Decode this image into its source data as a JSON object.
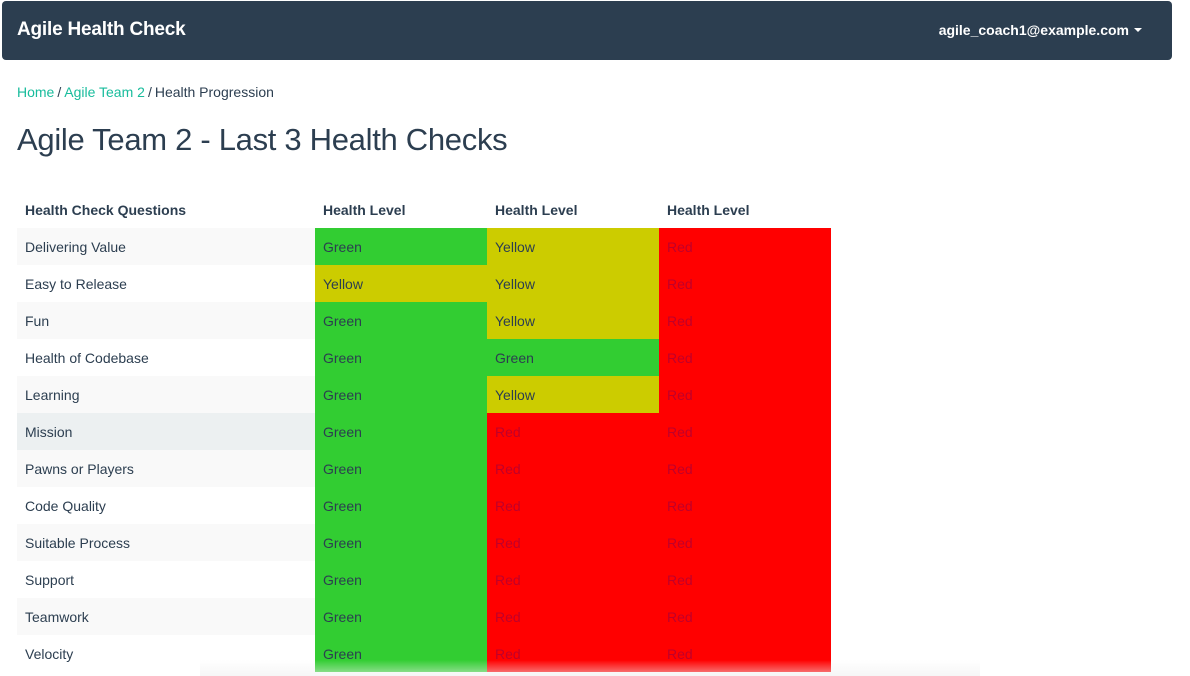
{
  "navbar": {
    "brand": "Agile Health Check",
    "user_email": "agile_coach1@example.com"
  },
  "breadcrumb": {
    "home": "Home",
    "separator": "/",
    "team": "Agile Team 2",
    "current": "Health Progression"
  },
  "page": {
    "title": "Agile Team 2 - Last 3 Health Checks"
  },
  "table": {
    "headers": [
      "Health Check Questions",
      "Health Level",
      "Health Level",
      "Health Level"
    ],
    "rows": [
      {
        "question": "Delivering Value",
        "levels": [
          "Green",
          "Yellow",
          "Red"
        ]
      },
      {
        "question": "Easy to Release",
        "levels": [
          "Yellow",
          "Yellow",
          "Red"
        ]
      },
      {
        "question": "Fun",
        "levels": [
          "Green",
          "Yellow",
          "Red"
        ]
      },
      {
        "question": "Health of Codebase",
        "levels": [
          "Green",
          "Green",
          "Red"
        ]
      },
      {
        "question": "Learning",
        "levels": [
          "Green",
          "Yellow",
          "Red"
        ]
      },
      {
        "question": "Mission",
        "levels": [
          "Green",
          "Red",
          "Red"
        ]
      },
      {
        "question": "Pawns or Players",
        "levels": [
          "Green",
          "Red",
          "Red"
        ]
      },
      {
        "question": "Code Quality",
        "levels": [
          "Green",
          "Red",
          "Red"
        ]
      },
      {
        "question": "Suitable Process",
        "levels": [
          "Green",
          "Red",
          "Red"
        ]
      },
      {
        "question": "Support",
        "levels": [
          "Green",
          "Red",
          "Red"
        ]
      },
      {
        "question": "Teamwork",
        "levels": [
          "Green",
          "Red",
          "Red"
        ]
      },
      {
        "question": "Velocity",
        "levels": [
          "Green",
          "Red",
          "Red"
        ]
      }
    ]
  },
  "colors": {
    "navbar_bg": "#2c3e50",
    "link": "#18bc9c",
    "green": "#32cd32",
    "yellow": "#cccc00",
    "red": "#ff0000"
  }
}
